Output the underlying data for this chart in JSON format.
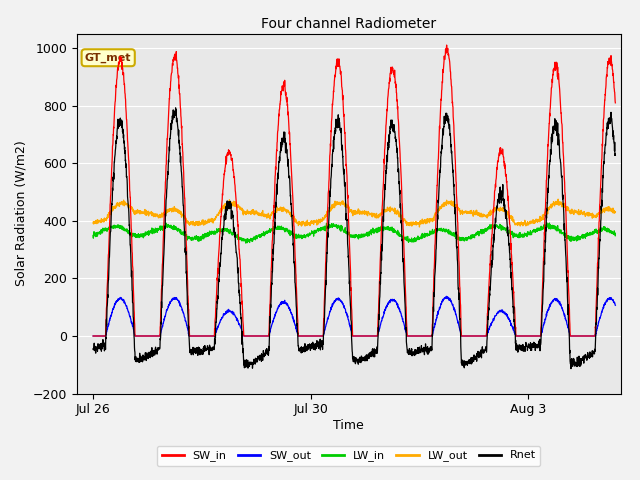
{
  "title": "Four channel Radiometer",
  "xlabel": "Time",
  "ylabel": "Solar Radiation (W/m2)",
  "ylim": [
    -200,
    1050
  ],
  "yticks": [
    -200,
    0,
    200,
    400,
    600,
    800,
    1000
  ],
  "xtick_labels": [
    "Jul 26",
    "Jul 30",
    "Aug 3"
  ],
  "xtick_positions": [
    0.0,
    4.0,
    8.0
  ],
  "xlim": [
    -0.3,
    9.7
  ],
  "background_color": "#e8e8e8",
  "figure_facecolor": "#f2f2f2",
  "annotation_text": "GT_met",
  "annotation_facecolor": "#ffffcc",
  "annotation_edgecolor": "#ccaa00",
  "colors": {
    "SW_in": "#ff0000",
    "SW_out": "#0000ff",
    "LW_in": "#00cc00",
    "LW_out": "#ffaa00",
    "Rnet": "#000000"
  },
  "series_labels": [
    "SW_in",
    "SW_out",
    "LW_in",
    "LW_out",
    "Rnet"
  ],
  "n_points": 2400,
  "total_days": 9.6,
  "seed": 42
}
